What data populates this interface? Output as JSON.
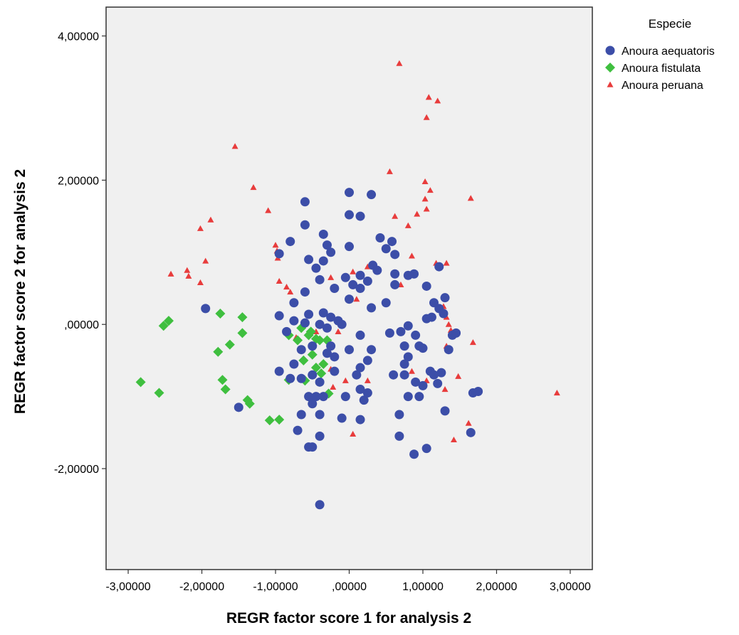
{
  "chart_data": {
    "type": "scatter",
    "xlabel": "REGR factor score   1 for analysis 2",
    "ylabel": "REGR factor score   2 for analysis 2",
    "xlim": [
      -3.3,
      3.3
    ],
    "ylim": [
      -3.4,
      4.4
    ],
    "x_ticks": [
      -3,
      -2,
      -1,
      0,
      1,
      2,
      3
    ],
    "x_tick_labels": [
      "-3,00000",
      "-2,00000",
      "-1,00000",
      ",00000",
      "1,00000",
      "2,00000",
      "3,00000"
    ],
    "y_ticks": [
      -2,
      0,
      2,
      4
    ],
    "y_tick_labels": [
      "-2,00000",
      ",00000",
      "2,00000",
      "4,00000"
    ],
    "grid": false,
    "background_color": "#f0f0f0",
    "legend": {
      "title": "Especie",
      "placement": "right-top"
    },
    "series": [
      {
        "name": "Anoura aequatoris",
        "marker": "circle",
        "color": "#3c4ea8",
        "points": [
          [
            -0.6,
            1.7
          ],
          [
            0.0,
            1.83
          ],
          [
            0.3,
            1.8
          ],
          [
            0.0,
            1.52
          ],
          [
            0.15,
            1.5
          ],
          [
            -0.6,
            1.38
          ],
          [
            -0.8,
            1.15
          ],
          [
            -0.35,
            1.25
          ],
          [
            -0.3,
            1.1
          ],
          [
            -0.25,
            1.0
          ],
          [
            -0.95,
            0.98
          ],
          [
            -0.55,
            0.9
          ],
          [
            -0.35,
            0.88
          ],
          [
            -0.45,
            0.78
          ],
          [
            0.0,
            1.08
          ],
          [
            0.42,
            1.2
          ],
          [
            0.58,
            1.15
          ],
          [
            0.5,
            1.05
          ],
          [
            0.62,
            0.97
          ],
          [
            0.32,
            0.82
          ],
          [
            0.38,
            0.75
          ],
          [
            0.15,
            0.68
          ],
          [
            -0.05,
            0.65
          ],
          [
            -0.4,
            0.62
          ],
          [
            -0.2,
            0.5
          ],
          [
            -0.6,
            0.45
          ],
          [
            0.05,
            0.55
          ],
          [
            0.15,
            0.5
          ],
          [
            0.0,
            0.35
          ],
          [
            0.25,
            0.6
          ],
          [
            0.62,
            0.7
          ],
          [
            0.62,
            0.55
          ],
          [
            0.8,
            0.68
          ],
          [
            0.88,
            0.7
          ],
          [
            1.05,
            0.53
          ],
          [
            1.22,
            0.8
          ],
          [
            1.15,
            0.3
          ],
          [
            1.22,
            0.22
          ],
          [
            1.3,
            0.37
          ],
          [
            1.28,
            0.15
          ],
          [
            1.05,
            0.08
          ],
          [
            1.12,
            0.1
          ],
          [
            0.5,
            0.3
          ],
          [
            0.3,
            0.23
          ],
          [
            -0.75,
            0.3
          ],
          [
            -0.95,
            0.12
          ],
          [
            -0.75,
            0.05
          ],
          [
            -0.55,
            0.14
          ],
          [
            -0.35,
            0.16
          ],
          [
            -0.25,
            0.1
          ],
          [
            -0.15,
            0.05
          ],
          [
            -0.1,
            0.0
          ],
          [
            -0.3,
            -0.05
          ],
          [
            -0.4,
            0.0
          ],
          [
            -0.6,
            0.02
          ],
          [
            -0.85,
            -0.1
          ],
          [
            -0.25,
            -0.3
          ],
          [
            -0.3,
            -0.4
          ],
          [
            -0.2,
            -0.45
          ],
          [
            -0.5,
            -0.3
          ],
          [
            -0.65,
            -0.35
          ],
          [
            -0.75,
            -0.55
          ],
          [
            -0.95,
            -0.65
          ],
          [
            -0.8,
            -0.75
          ],
          [
            -0.65,
            -0.75
          ],
          [
            -0.5,
            -0.7
          ],
          [
            -0.4,
            -0.8
          ],
          [
            -0.55,
            -1.0
          ],
          [
            -0.45,
            -1.0
          ],
          [
            -0.35,
            -1.0
          ],
          [
            -0.5,
            -1.1
          ],
          [
            -0.65,
            -1.25
          ],
          [
            -0.4,
            -1.25
          ],
          [
            -0.7,
            -1.47
          ],
          [
            -0.55,
            -1.7
          ],
          [
            -0.5,
            -1.7
          ],
          [
            -0.4,
            -1.55
          ],
          [
            -0.1,
            -1.3
          ],
          [
            0.15,
            -1.32
          ],
          [
            -0.05,
            -1.0
          ],
          [
            0.1,
            -0.7
          ],
          [
            0.15,
            -0.9
          ],
          [
            0.2,
            -1.05
          ],
          [
            0.25,
            -0.95
          ],
          [
            0.15,
            -0.6
          ],
          [
            0.25,
            -0.5
          ],
          [
            0.3,
            -0.35
          ],
          [
            0.15,
            -0.15
          ],
          [
            0.0,
            -0.35
          ],
          [
            -0.2,
            -0.65
          ],
          [
            0.55,
            -0.12
          ],
          [
            0.7,
            -0.1
          ],
          [
            0.8,
            -0.02
          ],
          [
            0.9,
            -0.15
          ],
          [
            0.75,
            -0.3
          ],
          [
            0.8,
            -0.45
          ],
          [
            0.75,
            -0.55
          ],
          [
            0.95,
            -0.3
          ],
          [
            1.0,
            -0.33
          ],
          [
            0.75,
            -0.7
          ],
          [
            0.6,
            -0.7
          ],
          [
            0.9,
            -0.8
          ],
          [
            0.95,
            -1.0
          ],
          [
            0.8,
            -1.0
          ],
          [
            1.0,
            -0.85
          ],
          [
            1.1,
            -0.65
          ],
          [
            1.15,
            -0.7
          ],
          [
            1.2,
            -0.82
          ],
          [
            1.25,
            -0.67
          ],
          [
            1.3,
            -1.2
          ],
          [
            0.68,
            -1.25
          ],
          [
            0.68,
            -1.55
          ],
          [
            0.88,
            -1.8
          ],
          [
            1.05,
            -1.72
          ],
          [
            1.35,
            -0.35
          ],
          [
            1.4,
            -0.15
          ],
          [
            1.45,
            -0.12
          ],
          [
            1.68,
            -0.95
          ],
          [
            1.75,
            -0.93
          ],
          [
            1.65,
            -1.5
          ],
          [
            -1.5,
            -1.15
          ],
          [
            -1.95,
            0.22
          ],
          [
            -0.4,
            -2.5
          ]
        ]
      },
      {
        "name": "Anoura fistulata",
        "marker": "diamond",
        "color": "#3fbf3f",
        "points": [
          [
            -2.83,
            -0.8
          ],
          [
            -2.58,
            -0.95
          ],
          [
            -2.52,
            -0.02
          ],
          [
            -2.45,
            0.05
          ],
          [
            -1.75,
            0.15
          ],
          [
            -1.45,
            0.1
          ],
          [
            -1.45,
            -0.12
          ],
          [
            -1.78,
            -0.38
          ],
          [
            -1.62,
            -0.28
          ],
          [
            -1.72,
            -0.77
          ],
          [
            -1.68,
            -0.9
          ],
          [
            -1.38,
            -1.05
          ],
          [
            -1.35,
            -1.1
          ],
          [
            -1.08,
            -1.33
          ],
          [
            -0.95,
            -1.32
          ],
          [
            -0.82,
            -0.77
          ],
          [
            -0.82,
            -0.15
          ],
          [
            -0.7,
            -0.22
          ],
          [
            -0.65,
            -0.05
          ],
          [
            -0.55,
            -0.15
          ],
          [
            -0.52,
            -0.1
          ],
          [
            -0.45,
            -0.2
          ],
          [
            -0.4,
            -0.22
          ],
          [
            -0.3,
            -0.22
          ],
          [
            -0.5,
            -0.42
          ],
          [
            -0.62,
            -0.5
          ],
          [
            -0.45,
            -0.6
          ],
          [
            -0.38,
            -0.68
          ],
          [
            -0.28,
            -0.96
          ],
          [
            -0.6,
            -0.78
          ],
          [
            -0.35,
            -0.55
          ]
        ]
      },
      {
        "name": "Anoura peruana",
        "marker": "triangle",
        "color": "#e83c3c",
        "points": [
          [
            0.68,
            3.62
          ],
          [
            1.08,
            3.15
          ],
          [
            1.2,
            3.1
          ],
          [
            1.05,
            2.87
          ],
          [
            -1.55,
            2.47
          ],
          [
            0.55,
            2.12
          ],
          [
            1.03,
            1.98
          ],
          [
            1.1,
            1.86
          ],
          [
            1.03,
            1.74
          ],
          [
            1.65,
            1.75
          ],
          [
            -1.3,
            1.9
          ],
          [
            -1.1,
            1.58
          ],
          [
            -1.88,
            1.45
          ],
          [
            -2.02,
            1.33
          ],
          [
            0.62,
            1.5
          ],
          [
            0.92,
            1.53
          ],
          [
            1.05,
            1.6
          ],
          [
            0.8,
            1.37
          ],
          [
            -1.0,
            1.1
          ],
          [
            -0.98,
            1.02
          ],
          [
            -0.97,
            0.92
          ],
          [
            -1.95,
            0.88
          ],
          [
            -2.42,
            0.7
          ],
          [
            -2.2,
            0.75
          ],
          [
            -2.18,
            0.67
          ],
          [
            -2.02,
            0.58
          ],
          [
            -0.95,
            0.6
          ],
          [
            -0.85,
            0.52
          ],
          [
            -0.8,
            0.45
          ],
          [
            -0.25,
            0.65
          ],
          [
            0.05,
            0.73
          ],
          [
            0.25,
            0.8
          ],
          [
            0.7,
            0.55
          ],
          [
            0.85,
            0.95
          ],
          [
            1.18,
            0.85
          ],
          [
            1.32,
            0.85
          ],
          [
            1.28,
            0.25
          ],
          [
            1.32,
            0.1
          ],
          [
            1.35,
            0.0
          ],
          [
            1.38,
            -0.08
          ],
          [
            1.4,
            -0.15
          ],
          [
            1.32,
            -0.3
          ],
          [
            1.68,
            -0.25
          ],
          [
            0.1,
            0.35
          ],
          [
            -0.35,
            0.15
          ],
          [
            -0.15,
            -0.1
          ],
          [
            -0.45,
            -0.1
          ],
          [
            -0.72,
            -0.18
          ],
          [
            -0.25,
            -0.62
          ],
          [
            -0.2,
            -0.65
          ],
          [
            -0.22,
            -0.87
          ],
          [
            -0.05,
            -0.78
          ],
          [
            0.25,
            -0.78
          ],
          [
            0.85,
            -0.65
          ],
          [
            1.05,
            -0.78
          ],
          [
            1.3,
            -0.9
          ],
          [
            1.48,
            -0.72
          ],
          [
            1.62,
            -1.37
          ],
          [
            1.42,
            -1.6
          ],
          [
            0.05,
            -1.52
          ],
          [
            2.82,
            -0.95
          ]
        ]
      }
    ]
  }
}
